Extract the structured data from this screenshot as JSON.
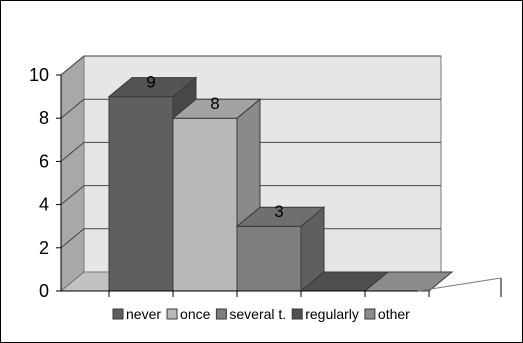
{
  "chart_data": {
    "type": "bar",
    "three_d": true,
    "categories": [
      "never",
      "once",
      "several t.",
      "regularly",
      "other"
    ],
    "values": [
      9,
      8,
      3,
      0,
      0
    ],
    "data_labels": [
      "9",
      "8",
      "3",
      "",
      ""
    ],
    "ylim": [
      0,
      10
    ],
    "y_ticks": [
      0,
      2,
      4,
      6,
      8,
      10
    ],
    "y_tick_labels": [
      "0",
      "2",
      "4",
      "6",
      "8",
      "10"
    ],
    "grid": true,
    "legend_position": "bottom",
    "title": "",
    "xlabel": "",
    "ylabel": "",
    "colors": [
      "#5f5f5f",
      "#b8b8b8",
      "#7e7e7e",
      "#4f4f4f",
      "#8c8c8c"
    ],
    "wall_color": "#e6e6e6",
    "side_wall_color": "#a8a8a8",
    "floor_color": "#c2c2c2"
  }
}
